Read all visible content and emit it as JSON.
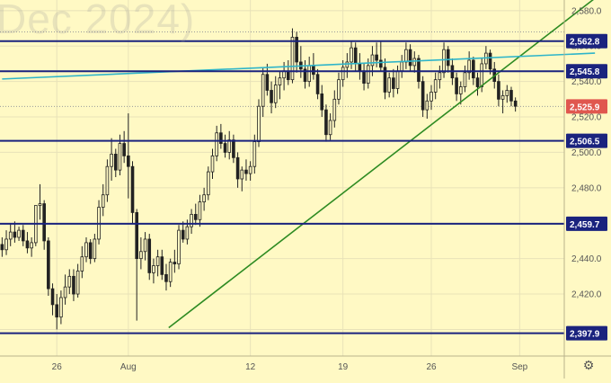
{
  "watermark": "Dec 2024)",
  "settings_icon": "gear-icon",
  "colors": {
    "background": "#fff9c4",
    "grid": "#e8e2b8",
    "candle": "#222222",
    "level_line": "#1a237e",
    "trend_green": "#2e8b22",
    "trend_cyan": "#2fb5c9",
    "current_label": "#e0574f",
    "axis_text": "#555555"
  },
  "chart_data": {
    "type": "candlestick",
    "title": "",
    "xlabel": "",
    "ylabel": "",
    "ylim": [
      2385.0,
      2586.0
    ],
    "grid": true,
    "x_ticks": [
      {
        "label": "26",
        "index": 13
      },
      {
        "label": "Aug",
        "index": 30
      },
      {
        "label": "12",
        "index": 59
      },
      {
        "label": "19",
        "index": 81
      },
      {
        "label": "26",
        "index": 102
      },
      {
        "label": "Sep",
        "index": 123
      }
    ],
    "y_ticks": [
      2400,
      2420,
      2440,
      2460,
      2480,
      2500,
      2520,
      2540,
      2560,
      2580
    ],
    "y_tick_labels": [
      "2,400.0",
      "2,420.0",
      "2,440.0",
      "2,460.0",
      "2,480.0",
      "2,500.0",
      "2,520.0",
      "2,540.0",
      "2,560.0",
      "2,580.0"
    ],
    "levels": [
      {
        "value": 2562.8,
        "label": "2,562.8"
      },
      {
        "value": 2545.8,
        "label": "2,545.8"
      },
      {
        "value": 2506.5,
        "label": "2,506.5"
      },
      {
        "value": 2459.7,
        "label": "2,459.7"
      },
      {
        "value": 2397.9,
        "label": "2,397.9"
      }
    ],
    "current_price": {
      "value": 2525.9,
      "label": "2,525.9"
    },
    "dotted_levels": [
      2568.0,
      2525.9
    ],
    "trendlines": [
      {
        "name": "",
        "color": "#2e8b22",
        "start": [
          39.6,
          2401.0
        ],
        "end": [
          140.9,
          2587.0
        ]
      },
      {
        "name": "",
        "color": "#2fb5c9",
        "start": [
          0,
          2541.4
        ],
        "end": [
          140.9,
          2556.0
        ]
      }
    ],
    "candles": [
      [
        2448,
        2452,
        2441,
        2445
      ],
      [
        2445,
        2456,
        2442,
        2451
      ],
      [
        2451,
        2460,
        2447,
        2455
      ],
      [
        2455,
        2461,
        2449,
        2452
      ],
      [
        2452,
        2458,
        2450,
        2456
      ],
      [
        2456,
        2459,
        2447,
        2450
      ],
      [
        2450,
        2455,
        2443,
        2446
      ],
      [
        2446,
        2452,
        2441,
        2449
      ],
      [
        2449,
        2470,
        2447,
        2470
      ],
      [
        2470,
        2482,
        2462,
        2471
      ],
      [
        2471,
        2473,
        2445,
        2450
      ],
      [
        2450,
        2452,
        2419,
        2423
      ],
      [
        2423,
        2426,
        2408,
        2414
      ],
      [
        2414,
        2420,
        2400,
        2407
      ],
      [
        2407,
        2422,
        2403,
        2418
      ],
      [
        2418,
        2431,
        2414,
        2424
      ],
      [
        2424,
        2434,
        2420,
        2430
      ],
      [
        2430,
        2434,
        2416,
        2420
      ],
      [
        2420,
        2437,
        2418,
        2433
      ],
      [
        2433,
        2447,
        2429,
        2441
      ],
      [
        2441,
        2452,
        2438,
        2449
      ],
      [
        2449,
        2451,
        2437,
        2440
      ],
      [
        2440,
        2454,
        2438,
        2451
      ],
      [
        2451,
        2473,
        2448,
        2469
      ],
      [
        2469,
        2482,
        2464,
        2476
      ],
      [
        2476,
        2496,
        2472,
        2492
      ],
      [
        2492,
        2508,
        2484,
        2499
      ],
      [
        2499,
        2502,
        2486,
        2490
      ],
      [
        2490,
        2510,
        2487,
        2505
      ],
      [
        2505,
        2512,
        2494,
        2498
      ],
      [
        2498,
        2522,
        2474,
        2492
      ],
      [
        2492,
        2495,
        2460,
        2466
      ],
      [
        2466,
        2468,
        2405,
        2440
      ],
      [
        2440,
        2452,
        2434,
        2444
      ],
      [
        2444,
        2455,
        2439,
        2451
      ],
      [
        2451,
        2454,
        2428,
        2432
      ],
      [
        2432,
        2440,
        2426,
        2436
      ],
      [
        2436,
        2445,
        2430,
        2441
      ],
      [
        2441,
        2445,
        2428,
        2431
      ],
      [
        2431,
        2437,
        2422,
        2427
      ],
      [
        2427,
        2440,
        2424,
        2438
      ],
      [
        2438,
        2445,
        2432,
        2437
      ],
      [
        2437,
        2459,
        2434,
        2456
      ],
      [
        2456,
        2461,
        2449,
        2451
      ],
      [
        2451,
        2462,
        2448,
        2458
      ],
      [
        2458,
        2468,
        2454,
        2465
      ],
      [
        2465,
        2471,
        2459,
        2462
      ],
      [
        2462,
        2476,
        2458,
        2472
      ],
      [
        2472,
        2480,
        2467,
        2476
      ],
      [
        2476,
        2492,
        2473,
        2489
      ],
      [
        2489,
        2502,
        2485,
        2498
      ],
      [
        2498,
        2515,
        2495,
        2511
      ],
      [
        2511,
        2516,
        2502,
        2505
      ],
      [
        2505,
        2510,
        2497,
        2500
      ],
      [
        2500,
        2512,
        2496,
        2507
      ],
      [
        2507,
        2510,
        2494,
        2497
      ],
      [
        2497,
        2500,
        2480,
        2485
      ],
      [
        2485,
        2492,
        2478,
        2490
      ],
      [
        2490,
        2496,
        2484,
        2488
      ],
      [
        2488,
        2495,
        2484,
        2492
      ],
      [
        2492,
        2510,
        2488,
        2506
      ],
      [
        2506,
        2530,
        2503,
        2526
      ],
      [
        2526,
        2548,
        2520,
        2544
      ],
      [
        2544,
        2550,
        2532,
        2535
      ],
      [
        2535,
        2540,
        2522,
        2528
      ],
      [
        2528,
        2543,
        2525,
        2538
      ],
      [
        2538,
        2546,
        2530,
        2542
      ],
      [
        2542,
        2551,
        2535,
        2546
      ],
      [
        2546,
        2552,
        2538,
        2541
      ],
      [
        2541,
        2570,
        2539,
        2565
      ],
      [
        2565,
        2568,
        2545,
        2551
      ],
      [
        2551,
        2560,
        2542,
        2547
      ],
      [
        2547,
        2552,
        2536,
        2540
      ],
      [
        2540,
        2554,
        2537,
        2549
      ],
      [
        2549,
        2556,
        2541,
        2544
      ],
      [
        2544,
        2547,
        2530,
        2533
      ],
      [
        2533,
        2538,
        2520,
        2524
      ],
      [
        2524,
        2527,
        2506,
        2510
      ],
      [
        2510,
        2522,
        2507,
        2518
      ],
      [
        2518,
        2535,
        2514,
        2530
      ],
      [
        2530,
        2545,
        2527,
        2541
      ],
      [
        2541,
        2552,
        2537,
        2548
      ],
      [
        2548,
        2556,
        2542,
        2551
      ],
      [
        2551,
        2563,
        2547,
        2559
      ],
      [
        2559,
        2562,
        2546,
        2550
      ],
      [
        2550,
        2556,
        2541,
        2546
      ],
      [
        2546,
        2550,
        2535,
        2539
      ],
      [
        2539,
        2553,
        2536,
        2549
      ],
      [
        2549,
        2560,
        2543,
        2555
      ],
      [
        2555,
        2562,
        2548,
        2552
      ],
      [
        2552,
        2563,
        2546,
        2548
      ],
      [
        2548,
        2553,
        2530,
        2534
      ],
      [
        2534,
        2545,
        2531,
        2542
      ],
      [
        2542,
        2547,
        2531,
        2536
      ],
      [
        2536,
        2549,
        2533,
        2546
      ],
      [
        2546,
        2555,
        2542,
        2551
      ],
      [
        2551,
        2562,
        2547,
        2558
      ],
      [
        2558,
        2561,
        2546,
        2549
      ],
      [
        2549,
        2557,
        2545,
        2553
      ],
      [
        2553,
        2555,
        2536,
        2540
      ],
      [
        2540,
        2543,
        2520,
        2524
      ],
      [
        2524,
        2533,
        2519,
        2529
      ],
      [
        2529,
        2538,
        2524,
        2534
      ],
      [
        2534,
        2545,
        2530,
        2541
      ],
      [
        2541,
        2549,
        2536,
        2545
      ],
      [
        2545,
        2562,
        2542,
        2558
      ],
      [
        2558,
        2560,
        2545,
        2549
      ],
      [
        2549,
        2553,
        2538,
        2542
      ],
      [
        2542,
        2545,
        2529,
        2533
      ],
      [
        2533,
        2540,
        2527,
        2537
      ],
      [
        2537,
        2549,
        2534,
        2545
      ],
      [
        2545,
        2557,
        2541,
        2552
      ],
      [
        2552,
        2554,
        2538,
        2542
      ],
      [
        2542,
        2545,
        2532,
        2537
      ],
      [
        2537,
        2553,
        2534,
        2550
      ],
      [
        2550,
        2560,
        2547,
        2556
      ],
      [
        2556,
        2558,
        2544,
        2547
      ],
      [
        2547,
        2551,
        2536,
        2540
      ],
      [
        2540,
        2544,
        2526,
        2530
      ],
      [
        2530,
        2535,
        2522,
        2532
      ],
      [
        2532,
        2538,
        2528,
        2535
      ],
      [
        2535,
        2537,
        2526,
        2529
      ],
      [
        2529,
        2531,
        2523,
        2526
      ]
    ]
  }
}
